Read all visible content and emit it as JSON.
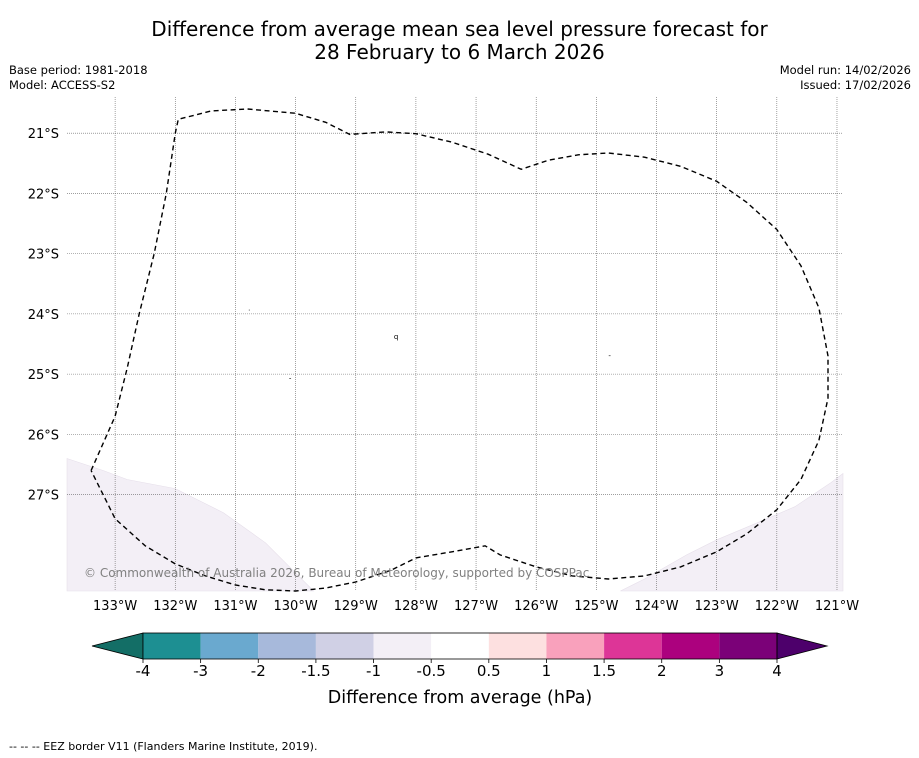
{
  "title": {
    "line1": "Difference from average mean sea level pressure forecast for",
    "line2": "28 February to 6 March 2026"
  },
  "meta": {
    "base_period": "Base period: 1981-2018",
    "model": "Model: ACCESS-S2",
    "model_run": "Model run: 14/02/2026",
    "issued": "Issued: 17/02/2026"
  },
  "map": {
    "lon_range": [
      -133.8,
      -120.9
    ],
    "lat_range": [
      -28.6,
      -20.4
    ],
    "lat_labels": [
      {
        "value": -21,
        "label": "21°S"
      },
      {
        "value": -22,
        "label": "22°S"
      },
      {
        "value": -23,
        "label": "23°S"
      },
      {
        "value": -24,
        "label": "24°S"
      },
      {
        "value": -25,
        "label": "25°S"
      },
      {
        "value": -26,
        "label": "26°S"
      },
      {
        "value": -27,
        "label": "27°S"
      }
    ],
    "lon_labels": [
      {
        "value": -133,
        "label": "133°W"
      },
      {
        "value": -132,
        "label": "132°W"
      },
      {
        "value": -131,
        "label": "131°W"
      },
      {
        "value": -130,
        "label": "130°W"
      },
      {
        "value": -129,
        "label": "129°W"
      },
      {
        "value": -128,
        "label": "128°W"
      },
      {
        "value": -127,
        "label": "127°W"
      },
      {
        "value": -126,
        "label": "126°W"
      },
      {
        "value": -125,
        "label": "125°W"
      },
      {
        "value": -124,
        "label": "124°W"
      },
      {
        "value": -123,
        "label": "123°W"
      },
      {
        "value": -122,
        "label": "122°W"
      },
      {
        "value": -121,
        "label": "121°W"
      }
    ],
    "eez_border": [
      [
        -133.4,
        -26.6
      ],
      [
        -133.0,
        -25.7
      ],
      [
        -132.8,
        -24.9
      ],
      [
        -132.6,
        -24.0
      ],
      [
        -132.35,
        -23.0
      ],
      [
        -132.15,
        -22.0
      ],
      [
        -132.0,
        -21.0
      ],
      [
        -131.95,
        -20.77
      ],
      [
        -131.4,
        -20.63
      ],
      [
        -130.8,
        -20.6
      ],
      [
        -130.0,
        -20.67
      ],
      [
        -129.5,
        -20.82
      ],
      [
        -129.1,
        -21.02
      ],
      [
        -128.5,
        -20.98
      ],
      [
        -128.0,
        -21.01
      ],
      [
        -127.4,
        -21.15
      ],
      [
        -126.8,
        -21.35
      ],
      [
        -126.25,
        -21.6
      ],
      [
        -125.8,
        -21.45
      ],
      [
        -125.3,
        -21.36
      ],
      [
        -124.8,
        -21.33
      ],
      [
        -124.2,
        -21.4
      ],
      [
        -123.6,
        -21.55
      ],
      [
        -123.0,
        -21.8
      ],
      [
        -122.5,
        -22.15
      ],
      [
        -122.0,
        -22.6
      ],
      [
        -121.6,
        -23.2
      ],
      [
        -121.3,
        -23.9
      ],
      [
        -121.15,
        -24.7
      ],
      [
        -121.15,
        -25.4
      ],
      [
        -121.3,
        -26.1
      ],
      [
        -121.6,
        -26.75
      ],
      [
        -122.0,
        -27.25
      ],
      [
        -122.5,
        -27.65
      ],
      [
        -123.0,
        -27.95
      ],
      [
        -123.6,
        -28.2
      ],
      [
        -124.2,
        -28.35
      ],
      [
        -124.8,
        -28.4
      ],
      [
        -125.4,
        -28.35
      ],
      [
        -126.0,
        -28.2
      ],
      [
        -126.6,
        -28.0
      ],
      [
        -126.85,
        -27.85
      ],
      [
        -127.4,
        -27.95
      ],
      [
        -128.0,
        -28.05
      ],
      [
        -128.4,
        -28.25
      ],
      [
        -129.0,
        -28.45
      ],
      [
        -129.5,
        -28.55
      ],
      [
        -130.0,
        -28.6
      ],
      [
        -130.5,
        -28.58
      ],
      [
        -131.0,
        -28.5
      ],
      [
        -131.5,
        -28.35
      ],
      [
        -132.0,
        -28.15
      ],
      [
        -132.5,
        -27.85
      ],
      [
        -133.0,
        -27.4
      ],
      [
        -133.4,
        -26.6
      ]
    ],
    "shade_left": [
      [
        -133.8,
        -26.4
      ],
      [
        -133.2,
        -26.6
      ],
      [
        -132.8,
        -26.75
      ],
      [
        -132.0,
        -26.9
      ],
      [
        -131.2,
        -27.3
      ],
      [
        -130.5,
        -27.8
      ],
      [
        -130.1,
        -28.2
      ],
      [
        -129.7,
        -28.6
      ],
      [
        -133.8,
        -28.6
      ]
    ],
    "shade_right": [
      [
        -120.9,
        -26.65
      ],
      [
        -121.1,
        -26.8
      ],
      [
        -121.7,
        -27.2
      ],
      [
        -122.4,
        -27.5
      ],
      [
        -123.0,
        -27.75
      ],
      [
        -123.5,
        -28.0
      ],
      [
        -124.2,
        -28.4
      ],
      [
        -124.6,
        -28.6
      ],
      [
        -120.9,
        -28.6
      ]
    ],
    "islands": [
      {
        "lon": -130.77,
        "lat": -23.93,
        "mark": "·"
      },
      {
        "lon": -128.33,
        "lat": -24.37,
        "mark": "q"
      },
      {
        "lon": -124.78,
        "lat": -24.68,
        "mark": "-"
      },
      {
        "lon": -130.09,
        "lat": -25.06,
        "mark": "-"
      }
    ],
    "copyright": "© Commonwealth of Australia 2026, Bureau of Meteorology, supported by COSPPac"
  },
  "colorbar": {
    "colors": [
      "#136e66",
      "#1d8f92",
      "#6aa9cf",
      "#a7b9db",
      "#d0d0e5",
      "#f3eff6",
      "#ffffff",
      "#fde0e0",
      "#f9a1bc",
      "#dd3597",
      "#ac017e",
      "#7b0178",
      "#4d006b"
    ],
    "tick_labels": [
      "-4",
      "-3",
      "-2",
      "-1.5",
      "-1",
      "-0.5",
      "0.5",
      "1",
      "1.5",
      "2",
      "3",
      "4"
    ],
    "label": "Difference from average (hPa)",
    "shade_color": "#f3eff6"
  },
  "footer": {
    "legend": "--  --  -- EEZ border V11 (Flanders Marine Institute, 2019)."
  }
}
